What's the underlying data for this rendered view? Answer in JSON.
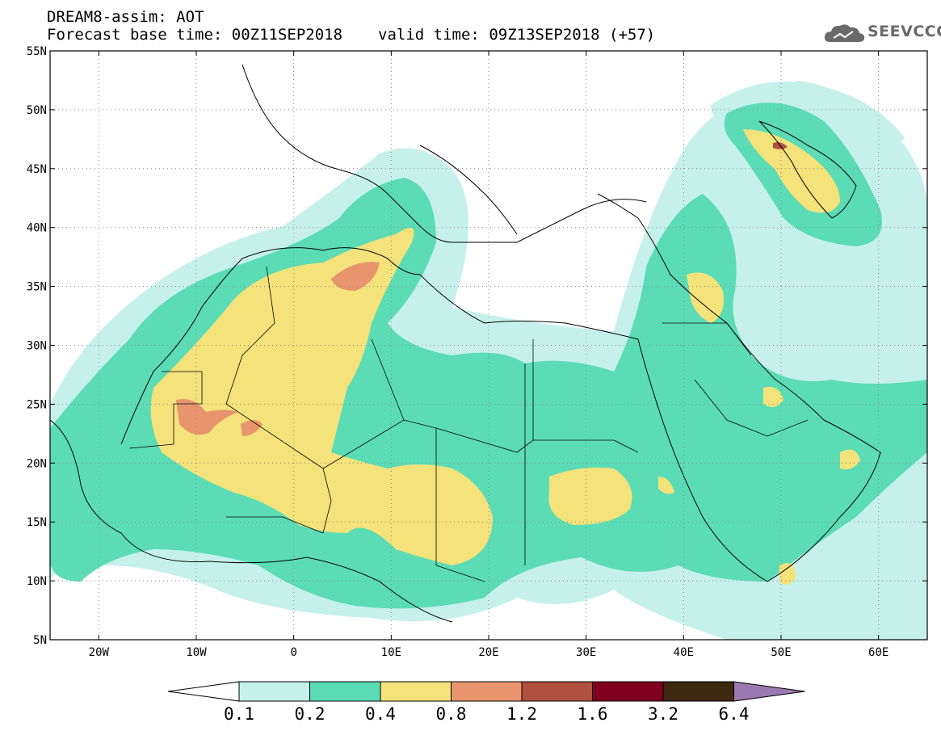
{
  "header": {
    "title_line1": "DREAM8-assim: AOT",
    "base_time": "Forecast base time: 00Z11SEP2018",
    "valid_time": "valid time: 09Z13SEP2018 (+57)"
  },
  "logo": {
    "text": "SEEVCCC",
    "icon": "cloud-icon"
  },
  "map": {
    "lon_range": [
      -25,
      65
    ],
    "lat_range": [
      5,
      55
    ],
    "lat_ticks": [
      {
        "value": 55,
        "label": "55N"
      },
      {
        "value": 50,
        "label": "50N"
      },
      {
        "value": 45,
        "label": "45N"
      },
      {
        "value": 40,
        "label": "40N"
      },
      {
        "value": 35,
        "label": "35N"
      },
      {
        "value": 30,
        "label": "30N"
      },
      {
        "value": 25,
        "label": "25N"
      },
      {
        "value": 20,
        "label": "20N"
      },
      {
        "value": 15,
        "label": "15N"
      },
      {
        "value": 10,
        "label": "10N"
      },
      {
        "value": 5,
        "label": "5N"
      }
    ],
    "lon_ticks": [
      {
        "value": -20,
        "label": "20W"
      },
      {
        "value": -10,
        "label": "10W"
      },
      {
        "value": 0,
        "label": "0"
      },
      {
        "value": 10,
        "label": "10E"
      },
      {
        "value": 20,
        "label": "20E"
      },
      {
        "value": 30,
        "label": "30E"
      },
      {
        "value": 40,
        "label": "40E"
      },
      {
        "value": 50,
        "label": "50E"
      },
      {
        "value": 60,
        "label": "60E"
      }
    ],
    "gridlines": "dotted"
  },
  "colorbar": {
    "labels": [
      "0.1",
      "0.2",
      "0.4",
      "0.8",
      "1.2",
      "1.6",
      "3.2",
      "6.4"
    ],
    "colors": [
      "#ffffff",
      "#c6f1ea",
      "#5bdcb5",
      "#f4e27a",
      "#e8956e",
      "#b0503e",
      "#800020",
      "#3e2810",
      "#9a7ab0"
    ]
  },
  "colors": {
    "level1": "#c6f1ea",
    "level2": "#5bdcb5",
    "level3": "#f4e27a",
    "level4": "#e8956e",
    "level5": "#b0503e"
  }
}
